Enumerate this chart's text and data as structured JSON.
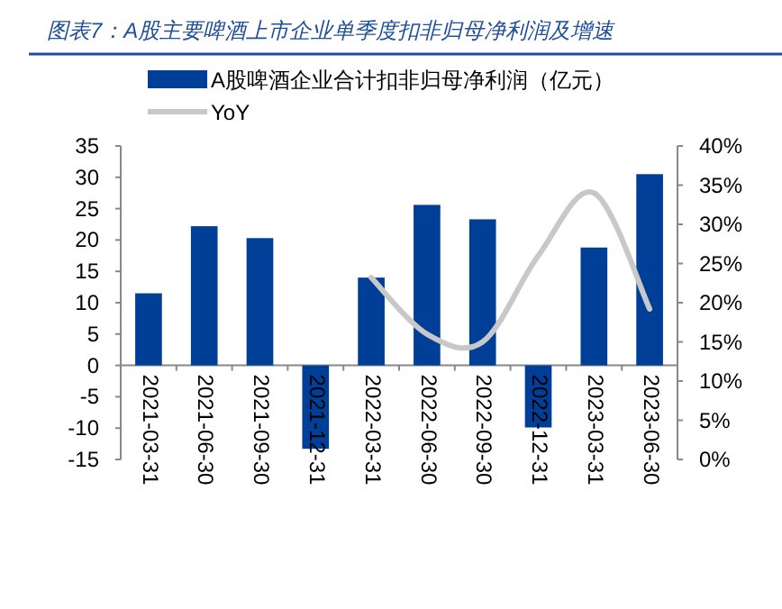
{
  "chart_data": {
    "type": "bar",
    "title": "图表7：A股主要啤酒上市企业单季度扣非归母净利润及增速",
    "categories": [
      "2021-03-31",
      "2021-06-30",
      "2021-09-30",
      "2021-12-31",
      "2022-03-31",
      "2022-06-30",
      "2022-09-30",
      "2022-12-31",
      "2023-03-31",
      "2023-06-30"
    ],
    "series": [
      {
        "name": "A股啤酒企业合计扣非归母净利润（亿元）",
        "color": "#003f98",
        "values": [
          11.5,
          22.2,
          20.3,
          -13.3,
          14.0,
          25.6,
          23.3,
          -9.9,
          18.8,
          30.5
        ]
      },
      {
        "name": "YoY",
        "type": "line",
        "axis": "y2",
        "color": "#c8c8c8",
        "values": [
          null,
          null,
          null,
          null,
          23.2,
          16.0,
          15.0,
          26.0,
          34.0,
          19.2
        ]
      }
    ],
    "ylim": [
      -15,
      35
    ],
    "yticks": [
      -15,
      -10,
      -5,
      0,
      5,
      10,
      15,
      20,
      25,
      30,
      35
    ],
    "y2lim": [
      0,
      40
    ],
    "y2ticks": [
      {
        "value": 0,
        "label": "0%"
      },
      {
        "value": 5,
        "label": "5%"
      },
      {
        "value": 10,
        "label": "10%"
      },
      {
        "value": 15,
        "label": "15%"
      },
      {
        "value": 20,
        "label": "20%"
      },
      {
        "value": 25,
        "label": "25%"
      },
      {
        "value": 30,
        "label": "30%"
      },
      {
        "value": 35,
        "label": "35%"
      },
      {
        "value": 40,
        "label": "40%"
      }
    ],
    "legend": "top",
    "grid": false,
    "marker": "none"
  }
}
